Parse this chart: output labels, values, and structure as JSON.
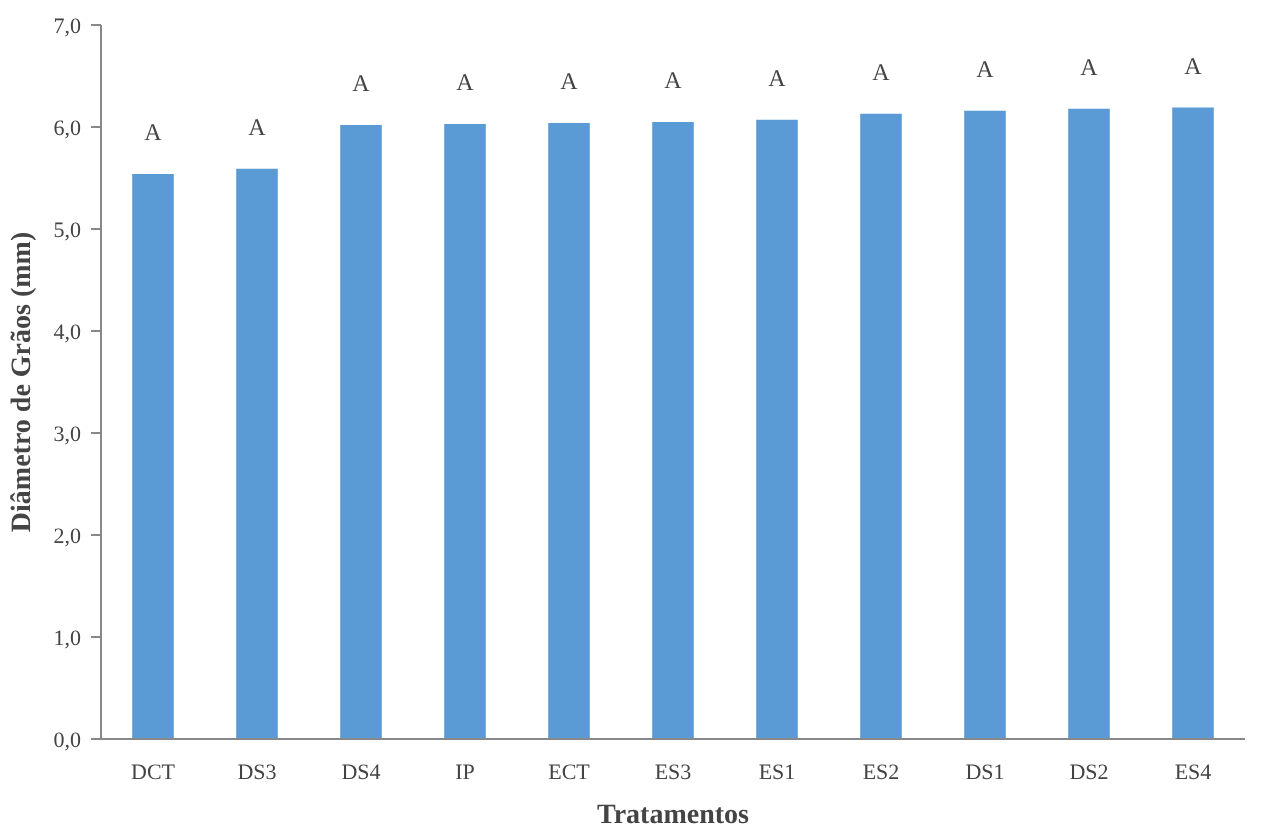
{
  "chart_data": {
    "type": "bar",
    "xlabel": "Tratamentos",
    "ylabel": "Diâmetro de Grãos (mm)",
    "categories": [
      "DCT",
      "DS3",
      "DS4",
      "IP",
      "ECT",
      "ES3",
      "ES1",
      "ES2",
      "DS1",
      "DS2",
      "ES4"
    ],
    "values": [
      5.54,
      5.59,
      6.02,
      6.03,
      6.04,
      6.05,
      6.07,
      6.13,
      6.16,
      6.18,
      6.19
    ],
    "color": "#5b9bd5",
    "ylim": [
      0,
      7
    ],
    "yticks": [
      {
        "value": 0,
        "label": "0,0"
      },
      {
        "value": 1,
        "label": "1,0"
      },
      {
        "value": 2,
        "label": "2,0"
      },
      {
        "value": 3,
        "label": "3,0"
      },
      {
        "value": 4,
        "label": "4,0"
      },
      {
        "value": 5,
        "label": "5,0"
      },
      {
        "value": 6,
        "label": "6,0"
      },
      {
        "value": 7,
        "label": "7,0"
      }
    ],
    "grid": false,
    "annotations": [
      {
        "text": "A",
        "x": "DCT",
        "y": 5.54
      },
      {
        "text": "A",
        "x": "DS3",
        "y": 5.59
      },
      {
        "text": "A",
        "x": "DS4",
        "y": 6.02
      },
      {
        "text": "A",
        "x": "IP",
        "y": 6.03
      },
      {
        "text": "A",
        "x": "ECT",
        "y": 6.04
      },
      {
        "text": "A",
        "x": "ES3",
        "y": 6.05
      },
      {
        "text": "A",
        "x": "ES1",
        "y": 6.07
      },
      {
        "text": "A",
        "x": "ES2",
        "y": 6.13
      },
      {
        "text": "A",
        "x": "DS1",
        "y": 6.16
      },
      {
        "text": "A",
        "x": "DS2",
        "y": 6.18
      },
      {
        "text": "A",
        "x": "ES4",
        "y": 6.19
      }
    ]
  }
}
